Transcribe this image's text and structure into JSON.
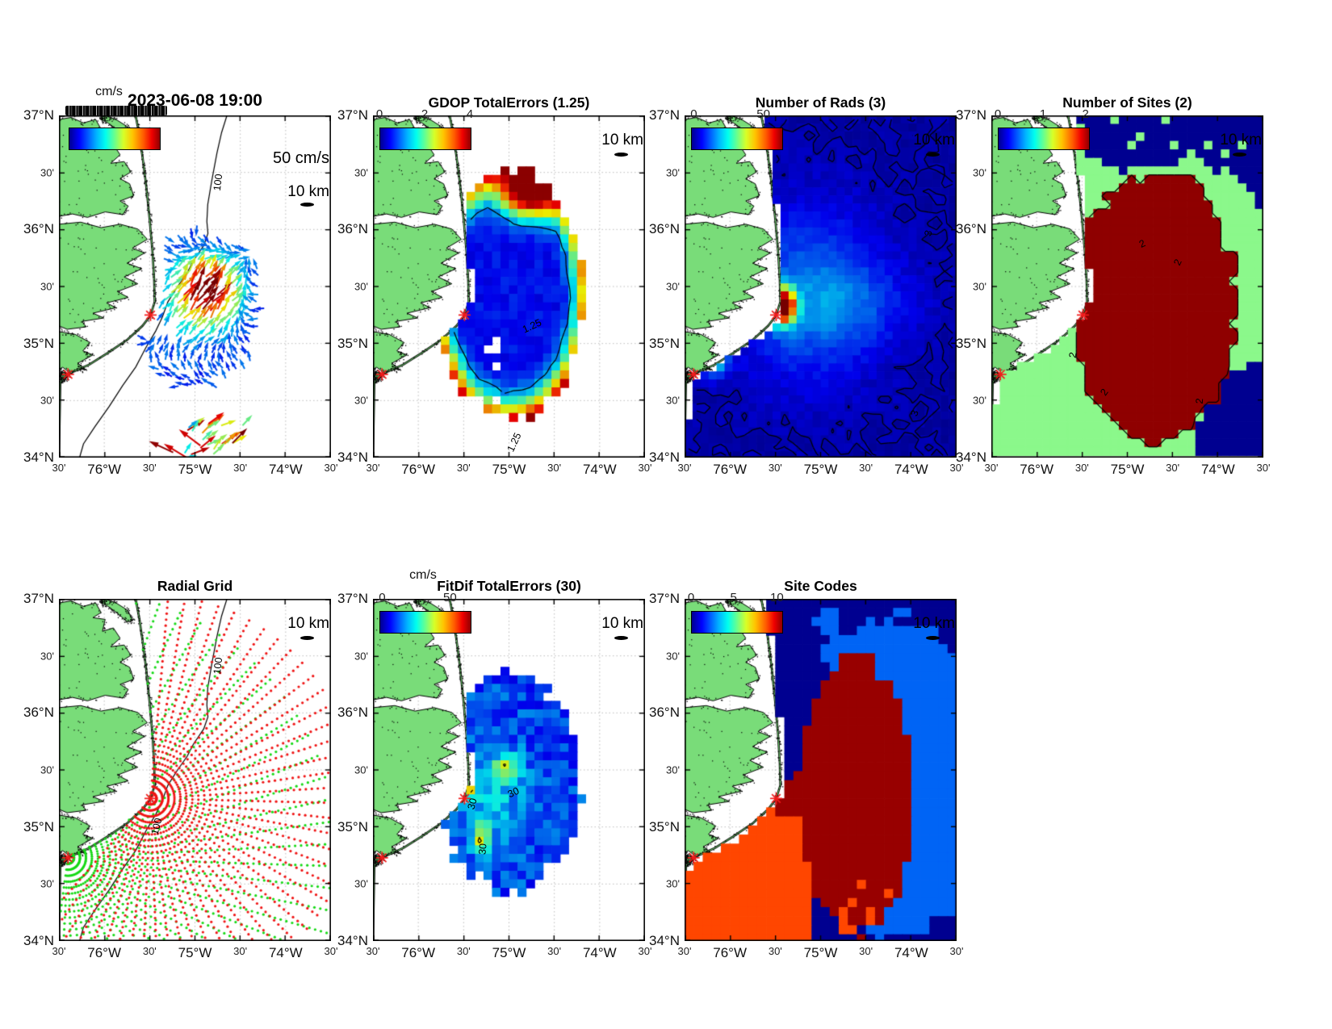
{
  "axes": {
    "x": [
      "30'",
      "76°W",
      "30'",
      "75°W",
      "30'",
      "74°W",
      "30'"
    ],
    "y": [
      "37°N",
      "30'",
      "36°N",
      "30'",
      "35°N",
      "30'",
      "34°N"
    ]
  },
  "colors": {
    "land": "#79DC79",
    "ocean": "#FFFFFF",
    "site_marker": "#F21B1B",
    "navy": "#000090",
    "data_green": "#8BF88B",
    "dark_red": "#8F0000",
    "site_blue": "#0064F5",
    "site_orange": "#FF4600"
  },
  "panels": [
    {
      "id": "currents",
      "title": "2023-06-08 19:00",
      "km_label": "10 km",
      "speed_label": "50 cm/s",
      "colorbar": {
        "label": "cm/s",
        "garbled_ticks": "0 5 10 15 20 25 30 35 40 45 50",
        "ticks": [],
        "tick_pos": []
      },
      "contour_labels": [
        {
          "text": "100",
          "fx": 0.585,
          "fy": 0.195,
          "rot": -83
        }
      ]
    },
    {
      "id": "gdop",
      "title": "GDOP TotalErrors (1.25)",
      "km_label": "10 km",
      "colorbar": {
        "label": "",
        "ticks": [
          "0",
          "2",
          "4"
        ],
        "tick_pos": [
          0,
          0.5,
          1
        ]
      },
      "contour_labels": [
        {
          "text": "1.25",
          "fx": 0.585,
          "fy": 0.615,
          "rot": -25
        },
        {
          "text": "1.25",
          "fx": 0.52,
          "fy": 0.955,
          "rot": -65
        }
      ]
    },
    {
      "id": "numrads",
      "title": "Number of Rads (3)",
      "km_label": "10 km",
      "colorbar": {
        "label": "",
        "ticks": [
          "0",
          "50"
        ],
        "tick_pos": [
          0.03,
          0.8
        ]
      },
      "contour_labels": [
        {
          "text": "3",
          "fx": 0.895,
          "fy": 0.345,
          "rot": -75
        },
        {
          "text": "3",
          "fx": 0.845,
          "fy": 0.87,
          "rot": -70
        }
      ]
    },
    {
      "id": "numsites",
      "title": "Number of Sites (2)",
      "km_label": "10 km",
      "colorbar": {
        "label": "",
        "ticks": [
          "0",
          "1",
          "2"
        ],
        "tick_pos": [
          0,
          0.5,
          0.97
        ]
      },
      "contour_labels": [
        {
          "text": "2",
          "fx": 0.555,
          "fy": 0.375,
          "rot": -25
        },
        {
          "text": "2",
          "fx": 0.685,
          "fy": 0.43,
          "rot": -65
        },
        {
          "text": "2",
          "fx": 0.3,
          "fy": 0.7,
          "rot": -80
        },
        {
          "text": "2",
          "fx": 0.415,
          "fy": 0.81,
          "rot": -55
        },
        {
          "text": "2",
          "fx": 0.765,
          "fy": 0.835,
          "rot": -85
        }
      ]
    },
    {
      "id": "radialgrid",
      "title": "Radial Grid",
      "km_label": "10 km",
      "colorbar": null,
      "contour_labels": [
        {
          "text": "100",
          "fx": 0.585,
          "fy": 0.195,
          "rot": -83
        },
        {
          "text": "100",
          "fx": 0.36,
          "fy": 0.665,
          "rot": -75
        }
      ]
    },
    {
      "id": "fitdif",
      "title": "FitDif TotalErrors (30)",
      "km_label": "10 km",
      "colorbar": {
        "label": "cm/s",
        "ticks": [
          "0",
          "50"
        ],
        "tick_pos": [
          0.03,
          0.78
        ]
      },
      "contour_labels": [
        {
          "text": "30",
          "fx": 0.365,
          "fy": 0.6,
          "rot": -75
        },
        {
          "text": "30",
          "fx": 0.515,
          "fy": 0.565,
          "rot": -25
        },
        {
          "text": "30",
          "fx": 0.405,
          "fy": 0.73,
          "rot": -85
        }
      ]
    },
    {
      "id": "sitecodes",
      "title": "Site Codes",
      "km_label": "10 km",
      "colorbar": {
        "label": "",
        "ticks": [
          "0",
          "5",
          "10"
        ],
        "tick_pos": [
          0,
          0.47,
          0.95
        ]
      },
      "contour_labels": []
    }
  ],
  "chart_data": [
    {
      "panel": "2023-06-08 19:00",
      "type": "vector_field",
      "units": "cm/s",
      "colorbar_range": [
        0,
        50
      ],
      "reference_scale": "50 cm/s",
      "scale_bar": "10 km",
      "description": "Total surface current vectors (jet colormap); NE-directed jet of ~50 cm/s centered near 75.1W 35.2N surrounded by 10-25 cm/s variable flow; second energetic patch near the southern map edge"
    },
    {
      "panel": "GDOP TotalErrors (1.25)",
      "type": "heatmap",
      "colorbar_range": [
        0,
        4
      ],
      "contour_level": 1.25,
      "description": "GDOP error field: ~0.5 (dark blue) in coverage core, rising to 2-3 at rim and ~4 (dark red) along the northern edge of coverage"
    },
    {
      "panel": "Number of Rads (3)",
      "type": "heatmap",
      "colorbar_range": [
        0,
        50
      ],
      "contour_level": 3,
      "description": "Radial count: background 2-5 over the whole domain, ~50 peak at the Cape Hatteras site, secondary ~20 maximum at the southern site"
    },
    {
      "panel": "Number of Sites (2)",
      "type": "heatmap",
      "colorbar_range": [
        0,
        2
      ],
      "contour_level": 2,
      "values": [
        0,
        1,
        2
      ],
      "description": "Sites contributing: 0 (navy) far field, 1 (light green) ring, 2 (dark red) central overlap region outlined by contour"
    },
    {
      "panel": "Radial Grid",
      "type": "scatter",
      "scale_bar": "10 km",
      "series": [
        {
          "name": "northern site radial grid",
          "color": "red"
        },
        {
          "name": "southern site radial grid",
          "color": "green"
        }
      ],
      "description": "Polar measurement grids (range arcs and bearings) from the two radar sites"
    },
    {
      "panel": "FitDif TotalErrors (30)",
      "type": "heatmap",
      "units": "cm/s",
      "colorbar_range": [
        0,
        50
      ],
      "contour_level": 30,
      "description": "Fit-difference error 5-20 cm/s (blue/cyan) with three >30 cm/s pockets (contoured), including a red maximum at the cape"
    },
    {
      "panel": "Site Codes",
      "type": "categorical_map",
      "colorbar_range": [
        0,
        10
      ],
      "regions": {
        "navy": "background",
        "blue": "eastern/offshore region",
        "dark_red": "central overlap region",
        "orange": "southwestern nearshore region"
      }
    }
  ],
  "geo": {
    "lon_range": [
      -76.5,
      -73.5
    ],
    "lat_range": [
      34,
      37
    ],
    "grid_interval_deg": 0.5,
    "depth_contour_m": 100,
    "radar_sites": [
      {
        "lon": -75.49,
        "lat": 35.25
      },
      {
        "lon": -76.4,
        "lat": 34.73
      }
    ]
  }
}
